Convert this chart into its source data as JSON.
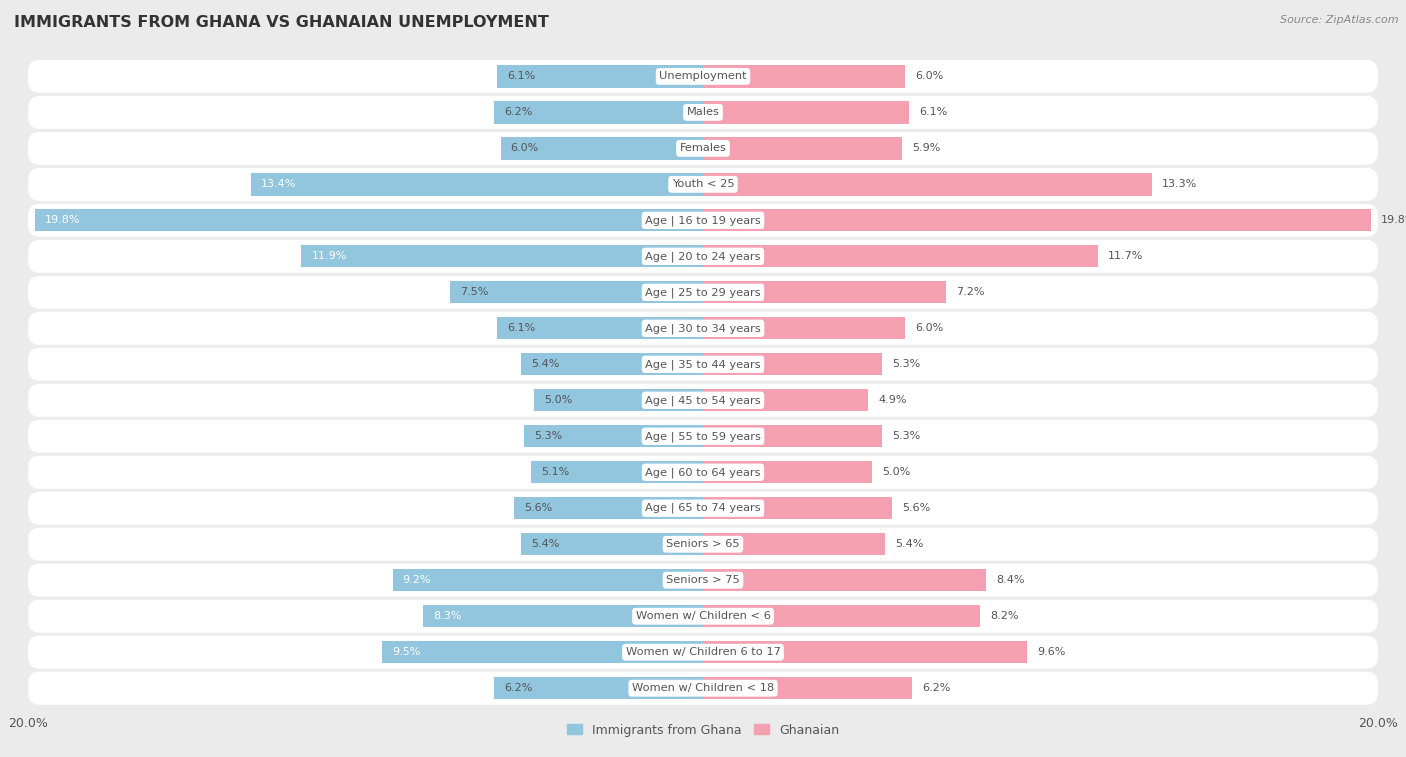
{
  "title": "IMMIGRANTS FROM GHANA VS GHANAIAN UNEMPLOYMENT",
  "source": "Source: ZipAtlas.com",
  "categories": [
    "Unemployment",
    "Males",
    "Females",
    "Youth < 25",
    "Age | 16 to 19 years",
    "Age | 20 to 24 years",
    "Age | 25 to 29 years",
    "Age | 30 to 34 years",
    "Age | 35 to 44 years",
    "Age | 45 to 54 years",
    "Age | 55 to 59 years",
    "Age | 60 to 64 years",
    "Age | 65 to 74 years",
    "Seniors > 65",
    "Seniors > 75",
    "Women w/ Children < 6",
    "Women w/ Children 6 to 17",
    "Women w/ Children < 18"
  ],
  "left_values": [
    6.1,
    6.2,
    6.0,
    13.4,
    19.8,
    11.9,
    7.5,
    6.1,
    5.4,
    5.0,
    5.3,
    5.1,
    5.6,
    5.4,
    9.2,
    8.3,
    9.5,
    6.2
  ],
  "right_values": [
    6.0,
    6.1,
    5.9,
    13.3,
    19.8,
    11.7,
    7.2,
    6.0,
    5.3,
    4.9,
    5.3,
    5.0,
    5.6,
    5.4,
    8.4,
    8.2,
    9.6,
    6.2
  ],
  "left_color": "#92c5de",
  "right_color": "#f4a0b0",
  "bg_color": "#ebebeb",
  "row_color": "#ffffff",
  "separator_color": "#d8d8d8",
  "label_bg": "#ffffff",
  "label_text_color": "#555555",
  "value_color": "#555555",
  "max_val": 20.0,
  "legend_left": "Immigrants from Ghana",
  "legend_right": "Ghanaian",
  "title_color": "#333333",
  "source_color": "#888888"
}
